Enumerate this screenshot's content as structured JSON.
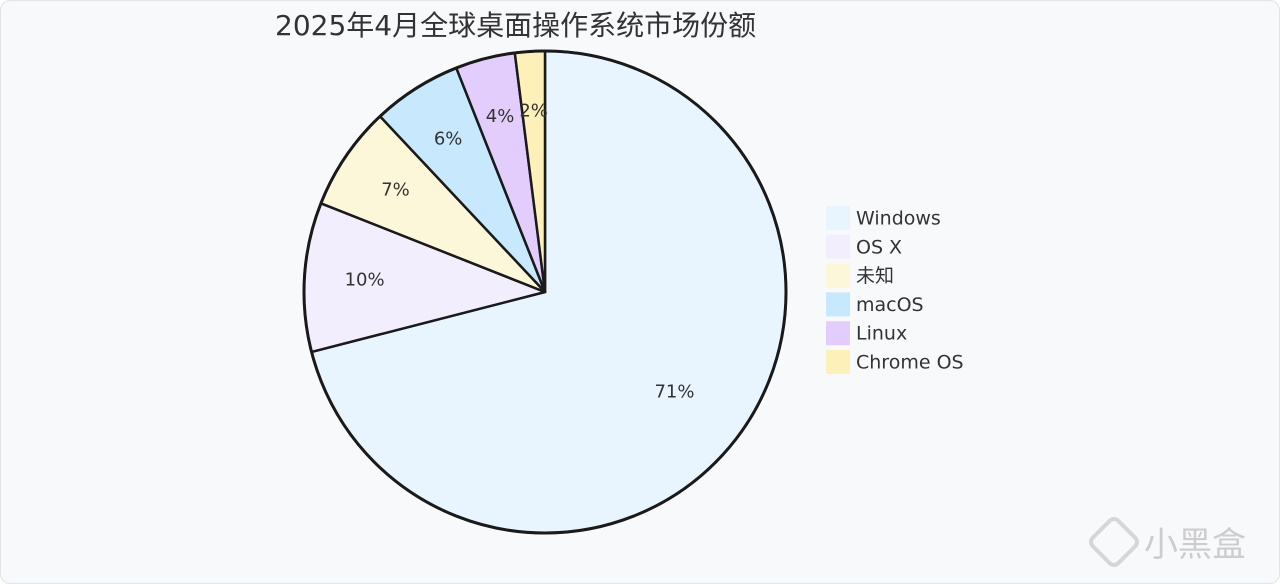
{
  "chart_data": {
    "type": "pie",
    "title": "2025年4月全球桌面操作系统市场份额",
    "slices": [
      {
        "label": "Windows",
        "value": 71,
        "display": "71%",
        "color": "#e8f4fe"
      },
      {
        "label": "OS X",
        "value": 10,
        "display": "10%",
        "color": "#f3eefd"
      },
      {
        "label": "未知",
        "value": 7,
        "display": "7%",
        "color": "#fdf7da"
      },
      {
        "label": "macOS",
        "value": 6,
        "display": "6%",
        "color": "#c7e8fd"
      },
      {
        "label": "Linux",
        "value": 4,
        "display": "4%",
        "color": "#e3cdfd"
      },
      {
        "label": "Chrome OS",
        "value": 2,
        "display": "2%",
        "color": "#fdf0b8"
      }
    ],
    "start_direction": "top",
    "direction": "clockwise",
    "legend_position": "right"
  },
  "watermark": {
    "text": "小黑盒"
  }
}
